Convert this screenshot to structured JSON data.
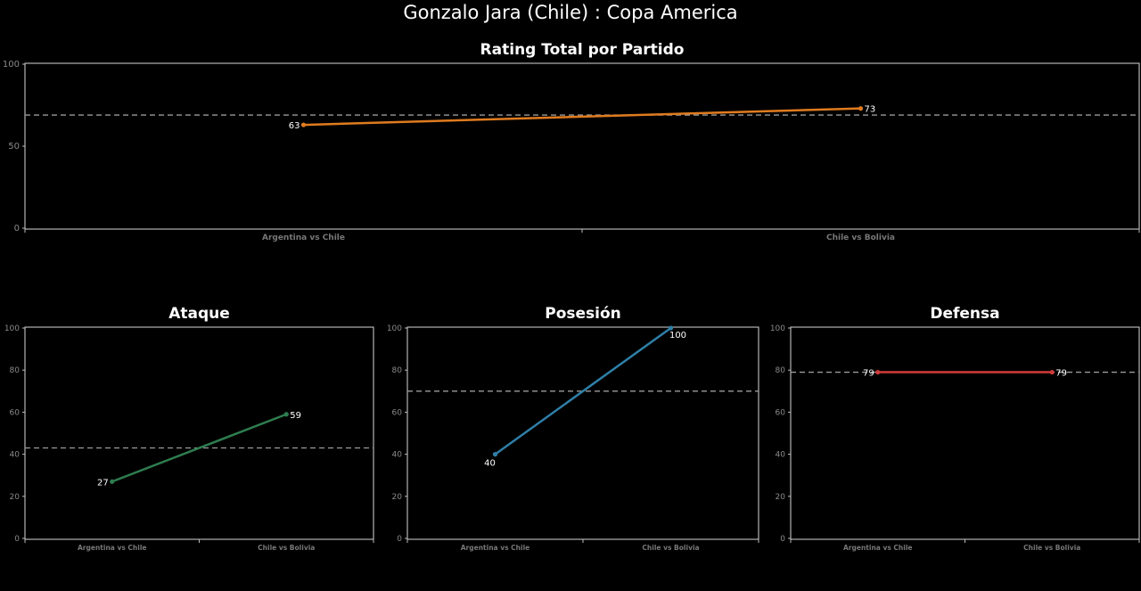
{
  "main_title": "Gonzalo Jara (Chile) :  Copa  America",
  "chart_data": [
    {
      "type": "line",
      "title": "Rating Total por Partido",
      "categories": [
        "Argentina vs Chile",
        "Chile vs Bolivia"
      ],
      "values": [
        63,
        73
      ],
      "ylim": [
        0,
        100
      ],
      "yticks": [
        0,
        50,
        100
      ],
      "reference_line": 69,
      "color": "#e07b1f"
    },
    {
      "type": "line",
      "title": "Ataque",
      "categories": [
        "Argentina vs Chile",
        "Chile vs Bolivia"
      ],
      "values": [
        27,
        59
      ],
      "ylim": [
        0,
        100
      ],
      "yticks": [
        0,
        20,
        40,
        60,
        80,
        100
      ],
      "reference_line": 43,
      "color": "#2e7d4f"
    },
    {
      "type": "line",
      "title": "Posesión",
      "categories": [
        "Argentina vs Chile",
        "Chile vs Bolivia"
      ],
      "values": [
        40,
        100
      ],
      "ylim": [
        0,
        100
      ],
      "yticks": [
        0,
        20,
        40,
        60,
        80,
        100
      ],
      "reference_line": 70,
      "color": "#2f7fa8"
    },
    {
      "type": "line",
      "title": "Defensa",
      "categories": [
        "Argentina vs Chile",
        "Chile vs Bolivia"
      ],
      "values": [
        79,
        79
      ],
      "ylim": [
        0,
        100
      ],
      "yticks": [
        0,
        20,
        40,
        60,
        80,
        100
      ],
      "reference_line": 79,
      "color": "#d23a3a"
    }
  ]
}
